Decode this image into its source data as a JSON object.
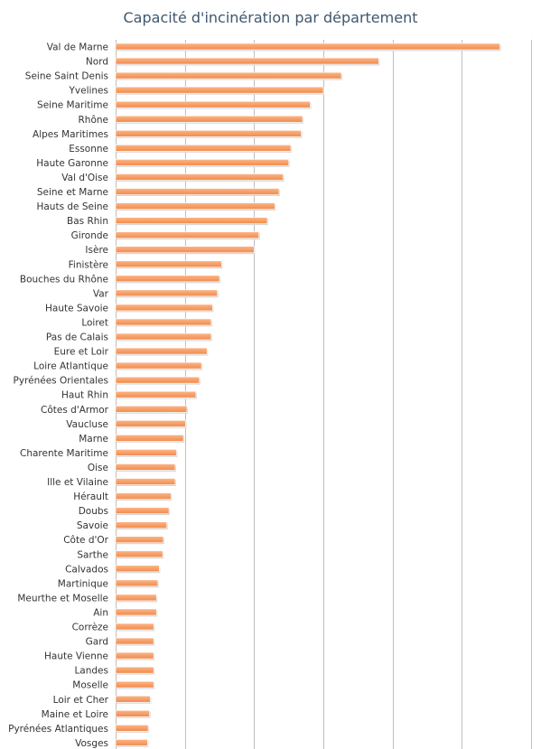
{
  "chart_data": {
    "type": "bar",
    "orientation": "horizontal",
    "title": "Capacité d'incinération par département",
    "xlabel": "",
    "ylabel": "",
    "xlim": [
      0,
      600000
    ],
    "grid": true,
    "legend": "none",
    "bar_color": "#f7a068",
    "categories": [
      "Val de Marne",
      "Nord",
      "Seine Saint Denis",
      "Yvelines",
      "Seine Maritime",
      "Rhône",
      "Alpes Maritimes",
      "Essonne",
      "Haute Garonne",
      "Val d'Oise",
      "Seine et Marne",
      "Hauts de Seine",
      "Bas Rhin",
      "Gironde",
      "Isère",
      "Finistère",
      "Bouches du Rhône",
      "Var",
      "Haute Savoie",
      "Loiret",
      "Pas de Calais",
      "Eure et Loir",
      "Loire Atlantique",
      "Pyrénées Orientales",
      "Haut Rhin",
      "Côtes d'Armor",
      "Vaucluse",
      "Marne",
      "Charente Maritime",
      "Oise",
      "Ille et Vilaine",
      "Hérault",
      "Doubs",
      "Savoie",
      "Côte d'Or",
      "Sarthe",
      "Calvados",
      "Martinique",
      "Meurthe et Moselle",
      "Ain",
      "Corrèze",
      "Gard",
      "Haute Vienne",
      "Landes",
      "Moselle",
      "Loir et Cher",
      "Maine et Loire",
      "Pyrénées Atlantiques",
      "Vosges"
    ],
    "values": [
      555000,
      380000,
      326000,
      300000,
      281000,
      270000,
      268000,
      253000,
      250000,
      242000,
      236000,
      230000,
      219000,
      207000,
      200000,
      153000,
      150000,
      147000,
      140000,
      138000,
      138000,
      132000,
      124000,
      121000,
      116000,
      103000,
      101000,
      98000,
      88000,
      86000,
      86000,
      80000,
      77000,
      74000,
      69000,
      68000,
      63000,
      61000,
      59000,
      59000,
      55000,
      55000,
      55000,
      55000,
      55000,
      50000,
      49000,
      47000,
      46000
    ]
  }
}
